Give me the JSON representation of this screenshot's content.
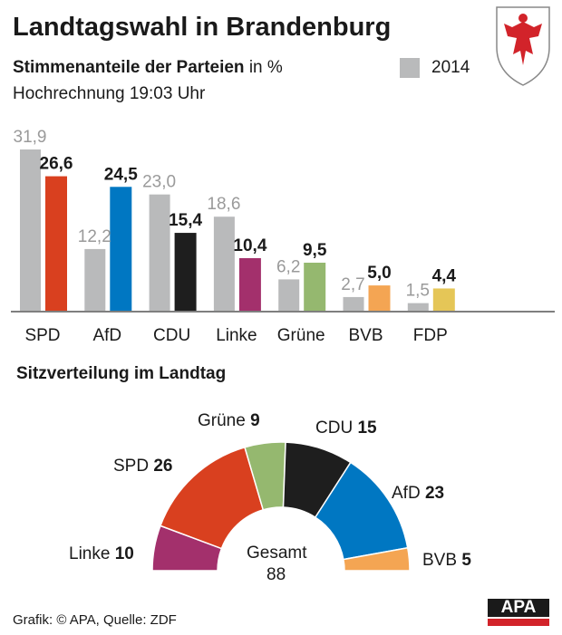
{
  "header": {
    "title": "Landtagswahl in Brandenburg",
    "subtitle_bold": "Stimmenanteile der Parteien",
    "subtitle_unit": "in %",
    "note": "Hochrechnung 19:03 Uhr",
    "legend_2014": "2014"
  },
  "chart_data": [
    {
      "type": "bar",
      "title": "Stimmenanteile der Parteien in %",
      "categories": [
        "SPD",
        "AfD",
        "CDU",
        "Linke",
        "Grüne",
        "BVB",
        "FDP"
      ],
      "series": [
        {
          "name": "2014",
          "values": [
            31.9,
            12.2,
            23.0,
            18.6,
            6.2,
            2.7,
            1.5
          ],
          "labels": [
            "31,9",
            "12,2",
            "23,0",
            "18,6",
            "6,2",
            "2,7",
            "1,5"
          ],
          "color": "#b9babb"
        },
        {
          "values": [
            26.6,
            24.5,
            15.4,
            10.4,
            9.5,
            5.0,
            4.4
          ],
          "labels": [
            "26,6",
            "24,5",
            "15,4",
            "10,4",
            "9,5",
            "5,0",
            "4,4"
          ],
          "colors": [
            "#d9401f",
            "#0077c2",
            "#1e1e1e",
            "#a3306c",
            "#95b86f",
            "#f4a553",
            "#e5c657"
          ]
        }
      ],
      "legend": "top-right",
      "grid": false
    },
    {
      "type": "pie",
      "variant": "half-donut",
      "title": "Sitzverteilung im Landtag",
      "slices": [
        {
          "label": "Linke",
          "value": 10,
          "color": "#a3306c"
        },
        {
          "label": "SPD",
          "value": 26,
          "color": "#d9401f"
        },
        {
          "label": "Grüne",
          "value": 9,
          "color": "#95b86f"
        },
        {
          "label": "CDU",
          "value": 15,
          "color": "#1e1e1e"
        },
        {
          "label": "AfD",
          "value": 23,
          "color": "#0077c2"
        },
        {
          "label": "BVB",
          "value": 5,
          "color": "#f4a553"
        }
      ],
      "total_label": "Gesamt",
      "total": "88"
    }
  ],
  "footer": {
    "source": "Grafik: © APA, Quelle: ZDF",
    "logo": "APA"
  }
}
